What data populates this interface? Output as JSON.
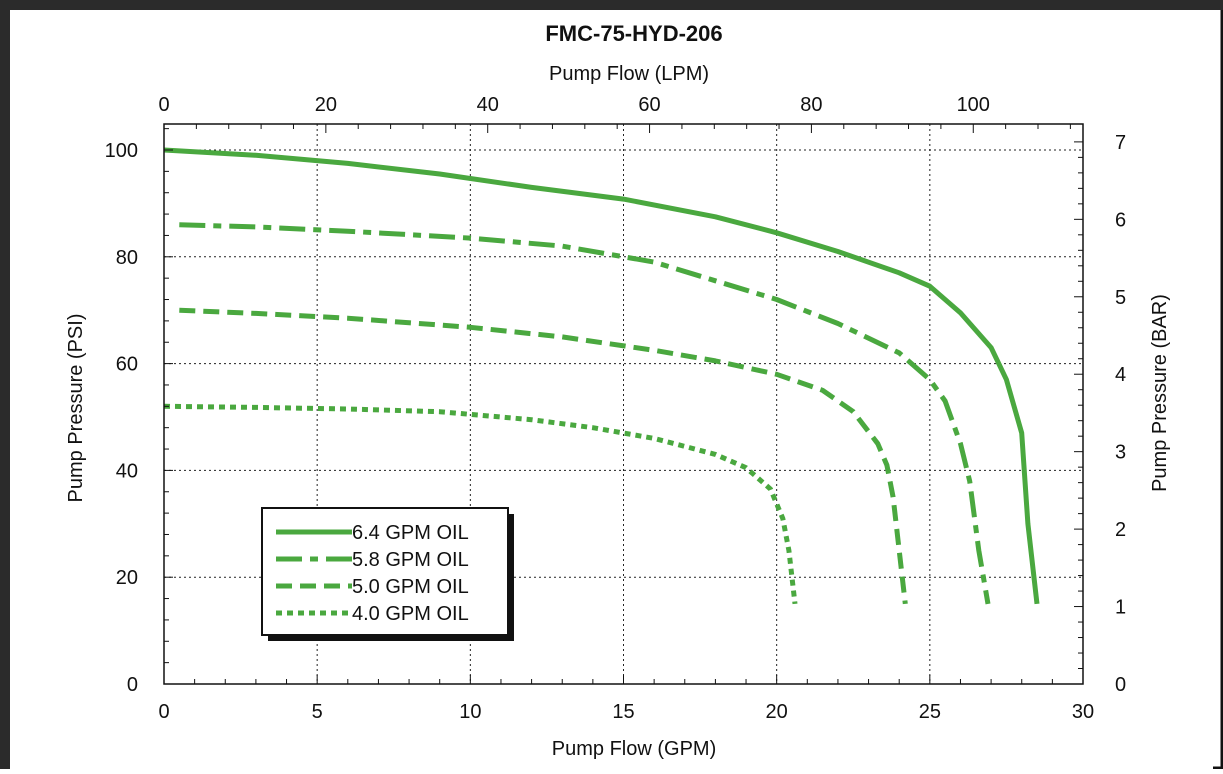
{
  "chart_data": {
    "type": "line",
    "title": "FMC-75-HYD-206",
    "xlabel": "Pump Flow (GPM)",
    "ylabel": "Pump Pressure (PSI)",
    "x2label": "Pump Flow (LPM)",
    "y2label": "Pump Pressure (BAR)",
    "xlim": [
      0,
      30
    ],
    "ylim": [
      0,
      105
    ],
    "x2lim": [
      0,
      113.56
    ],
    "y2lim": [
      0,
      7.24
    ],
    "x_ticks": [
      0,
      5,
      10,
      15,
      20,
      25,
      30
    ],
    "y_ticks": [
      0,
      20,
      40,
      60,
      80,
      100
    ],
    "x2_ticks": [
      0,
      20,
      40,
      60,
      80,
      100
    ],
    "y2_ticks": [
      0,
      1,
      2,
      3,
      4,
      5,
      6,
      7
    ],
    "grid": true,
    "legend_position": "bottom-left",
    "series": [
      {
        "name": "6.4 GPM OIL",
        "color": "#4aa83f",
        "dash": "solid",
        "x": [
          0,
          3,
          6,
          9,
          12,
          15,
          18,
          20,
          22,
          24,
          25,
          26,
          27,
          27.5,
          28,
          28.2,
          28.5
        ],
        "y": [
          100,
          99,
          97.5,
          95.5,
          93,
          90.8,
          87.5,
          84.5,
          81,
          77,
          74.5,
          69.5,
          63,
          57,
          47,
          30,
          15
        ]
      },
      {
        "name": "5.8 GPM OIL",
        "color": "#4aa83f",
        "dash": "dashdot",
        "x": [
          0.5,
          3,
          6,
          10,
          13,
          16,
          18,
          20,
          22,
          24,
          25,
          25.5,
          26,
          26.3,
          26.6,
          26.9
        ],
        "y": [
          86,
          85.6,
          84.8,
          83.5,
          82,
          79,
          75.5,
          72,
          67.5,
          62,
          57,
          53,
          45,
          38,
          25,
          15
        ]
      },
      {
        "name": "5.0 GPM OIL",
        "color": "#4aa83f",
        "dash": "dashed",
        "x": [
          0.5,
          3,
          6,
          10,
          13,
          16,
          18,
          20,
          21.5,
          22.5,
          23.3,
          23.6,
          23.8,
          24,
          24.2
        ],
        "y": [
          70,
          69.4,
          68.5,
          66.8,
          65,
          62.5,
          60.5,
          58,
          55,
          51,
          45,
          41,
          35,
          25,
          15
        ]
      },
      {
        "name": "4.0 GPM OIL",
        "color": "#4aa83f",
        "dash": "dotted",
        "x": [
          0,
          3,
          6,
          9,
          12,
          14,
          16,
          18,
          19,
          19.8,
          20.2,
          20.4,
          20.6
        ],
        "y": [
          52,
          51.8,
          51.5,
          51,
          49.5,
          48,
          46,
          43,
          40.5,
          36.5,
          31,
          25,
          15
        ]
      }
    ]
  }
}
